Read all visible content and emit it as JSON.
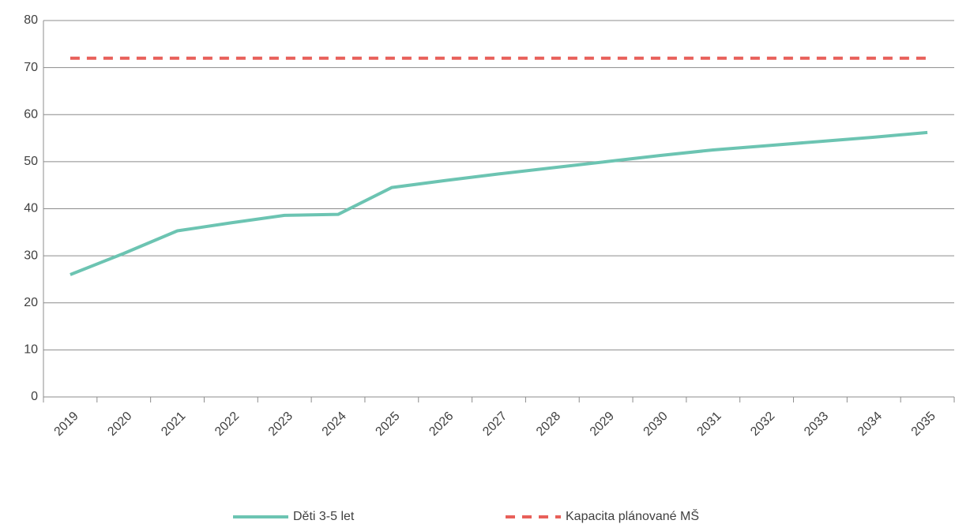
{
  "chart_data": {
    "type": "line",
    "categories": [
      "2019",
      "2020",
      "2021",
      "2022",
      "2023",
      "2024",
      "2025",
      "2026",
      "2027",
      "2028",
      "2029",
      "2030",
      "2031",
      "2032",
      "2033",
      "2034",
      "2035"
    ],
    "series": [
      {
        "name": "Děti 3-5 let",
        "color": "#6cc4b2",
        "dashed": false,
        "values": [
          26,
          30.5,
          35.3,
          37,
          38.6,
          38.8,
          44.5,
          46,
          47.4,
          48.7,
          50,
          51.3,
          52.5,
          53.4,
          54.3,
          55.2,
          56.2
        ]
      },
      {
        "name": "Kapacita plánované MŠ",
        "color": "#e8605a",
        "dashed": true,
        "values": [
          72,
          72,
          72,
          72,
          72,
          72,
          72,
          72,
          72,
          72,
          72,
          72,
          72,
          72,
          72,
          72,
          72
        ]
      }
    ],
    "ylim": [
      0,
      80
    ],
    "yticks": [
      0,
      10,
      20,
      30,
      40,
      50,
      60,
      70,
      80
    ],
    "grid": true
  }
}
